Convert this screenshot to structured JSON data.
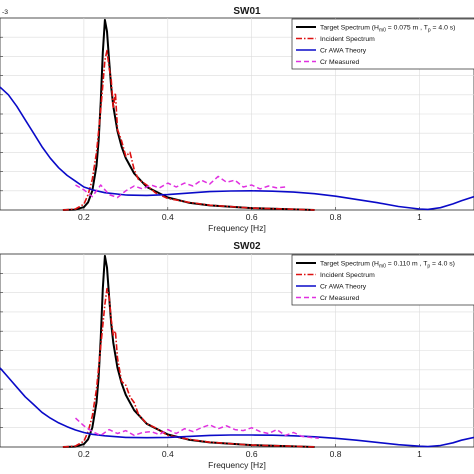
{
  "chart_data": [
    {
      "type": "line",
      "title": "SW01",
      "exponent": "-3",
      "xlabel": "Frequency [Hz]",
      "xlim": [
        0.0,
        1.13
      ],
      "ylim": [
        0,
        10
      ],
      "xticks": [
        0.2,
        0.4,
        0.6,
        0.8,
        1
      ],
      "xtick_labels": [
        "0.2",
        "0.4",
        "0.6",
        "0.8",
        "1"
      ],
      "grid": true,
      "legend_position": "top-right",
      "series": [
        {
          "name": "Target Spectrum (H_m0 = 0.075 m , T_p = 4.0 s)",
          "legend_label": "Target Spectrum (H",
          "legend_sub": "m0",
          "legend_tail": " = 0.075 m , T",
          "legend_sub2": "p",
          "legend_tail2": " = 4.0 s)",
          "color": "#000000",
          "style": "solid",
          "width": 2.0,
          "x": [
            0.15,
            0.18,
            0.2,
            0.21,
            0.22,
            0.23,
            0.235,
            0.24,
            0.245,
            0.25,
            0.255,
            0.26,
            0.265,
            0.27,
            0.28,
            0.29,
            0.3,
            0.32,
            0.35,
            0.4,
            0.45,
            0.5,
            0.6,
            0.7,
            0.75
          ],
          "y": [
            0,
            0.02,
            0.15,
            0.4,
            1.0,
            2.3,
            3.6,
            5.6,
            8.2,
            9.9,
            9.3,
            7.8,
            6.4,
            5.4,
            4.1,
            3.3,
            2.7,
            1.9,
            1.2,
            0.65,
            0.38,
            0.24,
            0.1,
            0.03,
            0
          ]
        },
        {
          "name": "Incident Spectrum",
          "color": "#dd1111",
          "style": "dashdot",
          "width": 1.6,
          "x": [
            0.15,
            0.18,
            0.2,
            0.21,
            0.22,
            0.23,
            0.24,
            0.25,
            0.255,
            0.26,
            0.265,
            0.27,
            0.275,
            0.28,
            0.29,
            0.3,
            0.31,
            0.32,
            0.33,
            0.35,
            0.37,
            0.4,
            0.45,
            0.5,
            0.6,
            0.7,
            0.75
          ],
          "y": [
            0,
            0.05,
            0.3,
            0.8,
            1.6,
            3.0,
            5.2,
            7.8,
            8.3,
            7.4,
            6.8,
            5.3,
            6.1,
            4.2,
            3.6,
            2.8,
            3.0,
            2.1,
            1.6,
            1.3,
            0.9,
            0.6,
            0.4,
            0.25,
            0.1,
            0.04,
            0
          ]
        },
        {
          "name": "Cr AWA Theory",
          "color": "#0a0ac8",
          "style": "solid",
          "width": 1.6,
          "x": [
            0.0,
            0.02,
            0.04,
            0.06,
            0.08,
            0.1,
            0.12,
            0.14,
            0.16,
            0.18,
            0.2,
            0.22,
            0.25,
            0.3,
            0.35,
            0.4,
            0.45,
            0.5,
            0.55,
            0.6,
            0.65,
            0.7,
            0.75,
            0.8,
            0.85,
            0.9,
            0.95,
            1.0,
            1.02,
            1.05,
            1.08,
            1.1,
            1.13
          ],
          "y": [
            6.4,
            6.0,
            5.4,
            4.7,
            4.0,
            3.3,
            2.7,
            2.2,
            1.8,
            1.5,
            1.2,
            1.05,
            0.9,
            0.78,
            0.76,
            0.8,
            0.88,
            0.96,
            0.99,
            1.0,
            0.98,
            0.93,
            0.85,
            0.72,
            0.55,
            0.38,
            0.18,
            0.05,
            0.03,
            0.12,
            0.32,
            0.48,
            0.7
          ]
        },
        {
          "name": "Cr Measured",
          "color": "#e030e0",
          "style": "dashed",
          "width": 1.5,
          "x": [
            0.18,
            0.2,
            0.22,
            0.24,
            0.26,
            0.28,
            0.3,
            0.32,
            0.34,
            0.36,
            0.38,
            0.4,
            0.42,
            0.44,
            0.46,
            0.48,
            0.5,
            0.52,
            0.54,
            0.56,
            0.58,
            0.6,
            0.62,
            0.64,
            0.66,
            0.68
          ],
          "y": [
            1.3,
            1.05,
            0.7,
            1.3,
            0.8,
            0.65,
            1.0,
            1.25,
            1.1,
            1.3,
            1.15,
            1.4,
            1.2,
            1.4,
            1.25,
            1.55,
            1.35,
            1.75,
            1.45,
            1.55,
            1.2,
            1.3,
            1.1,
            1.25,
            1.15,
            1.2
          ]
        }
      ]
    },
    {
      "type": "line",
      "title": "SW02",
      "exponent": "",
      "xlabel": "Frequency [Hz]",
      "xlim": [
        0.0,
        1.13
      ],
      "ylim": [
        0,
        10
      ],
      "xticks": [
        0.2,
        0.4,
        0.6,
        0.8,
        1
      ],
      "xtick_labels": [
        "0.2",
        "0.4",
        "0.6",
        "0.8",
        "1"
      ],
      "grid": true,
      "legend_position": "top-right",
      "series": [
        {
          "name": "Target Spectrum (H_m0 = 0.110 m , T_p = 4.0 s)",
          "legend_label": "Target Spectrum (H",
          "legend_sub": "m0",
          "legend_tail": " = 0.110 m , T",
          "legend_sub2": "p",
          "legend_tail2": " = 4.0 s)",
          "color": "#000000",
          "style": "solid",
          "width": 2.0,
          "x": [
            0.15,
            0.18,
            0.2,
            0.21,
            0.22,
            0.23,
            0.235,
            0.24,
            0.245,
            0.25,
            0.255,
            0.26,
            0.265,
            0.27,
            0.28,
            0.29,
            0.3,
            0.32,
            0.35,
            0.4,
            0.45,
            0.5,
            0.6,
            0.7,
            0.75
          ],
          "y": [
            0,
            0.02,
            0.15,
            0.4,
            1.0,
            2.3,
            3.6,
            5.6,
            8.2,
            9.9,
            9.3,
            7.8,
            6.4,
            5.4,
            4.1,
            3.3,
            2.7,
            1.9,
            1.2,
            0.65,
            0.38,
            0.24,
            0.1,
            0.03,
            0
          ]
        },
        {
          "name": "Incident Spectrum",
          "color": "#dd1111",
          "style": "dashdot",
          "width": 1.6,
          "x": [
            0.15,
            0.18,
            0.2,
            0.21,
            0.22,
            0.23,
            0.24,
            0.25,
            0.255,
            0.26,
            0.265,
            0.27,
            0.275,
            0.28,
            0.29,
            0.3,
            0.31,
            0.32,
            0.33,
            0.35,
            0.37,
            0.4,
            0.45,
            0.5,
            0.6,
            0.7,
            0.75
          ],
          "y": [
            0,
            0.05,
            0.3,
            0.8,
            1.6,
            3.0,
            5.2,
            7.4,
            8.2,
            7.8,
            6.6,
            5.8,
            6.0,
            4.6,
            3.4,
            3.2,
            2.6,
            2.3,
            1.7,
            1.2,
            1.0,
            0.6,
            0.4,
            0.25,
            0.1,
            0.04,
            0
          ]
        },
        {
          "name": "Cr AWA Theory",
          "color": "#0a0ac8",
          "style": "solid",
          "width": 1.6,
          "x": [
            0.0,
            0.02,
            0.04,
            0.06,
            0.08,
            0.1,
            0.12,
            0.14,
            0.16,
            0.18,
            0.2,
            0.22,
            0.25,
            0.3,
            0.35,
            0.4,
            0.45,
            0.5,
            0.55,
            0.6,
            0.65,
            0.7,
            0.75,
            0.8,
            0.85,
            0.9,
            0.95,
            1.0,
            1.02,
            1.05,
            1.08,
            1.1,
            1.13
          ],
          "y": [
            4.1,
            3.6,
            3.1,
            2.6,
            2.2,
            1.8,
            1.5,
            1.25,
            1.05,
            0.88,
            0.75,
            0.66,
            0.58,
            0.5,
            0.48,
            0.5,
            0.55,
            0.6,
            0.62,
            0.62,
            0.61,
            0.58,
            0.53,
            0.45,
            0.35,
            0.24,
            0.12,
            0.04,
            0.02,
            0.08,
            0.22,
            0.35,
            0.5
          ]
        },
        {
          "name": "Cr Measured",
          "color": "#e030e0",
          "style": "dashed",
          "width": 1.5,
          "x": [
            0.18,
            0.2,
            0.22,
            0.24,
            0.26,
            0.28,
            0.3,
            0.32,
            0.34,
            0.36,
            0.38,
            0.4,
            0.42,
            0.44,
            0.46,
            0.48,
            0.5,
            0.52,
            0.54,
            0.56,
            0.58,
            0.6,
            0.62,
            0.64,
            0.66,
            0.68,
            0.7,
            0.72,
            0.74,
            0.76
          ],
          "y": [
            1.5,
            1.1,
            0.8,
            0.6,
            0.9,
            0.7,
            0.85,
            0.6,
            0.75,
            0.8,
            0.65,
            0.9,
            0.7,
            0.95,
            0.8,
            1.0,
            1.15,
            0.95,
            1.1,
            0.9,
            0.85,
            1.0,
            0.8,
            0.7,
            0.9,
            0.6,
            0.75,
            0.55,
            0.5,
            0.45
          ]
        }
      ]
    }
  ]
}
